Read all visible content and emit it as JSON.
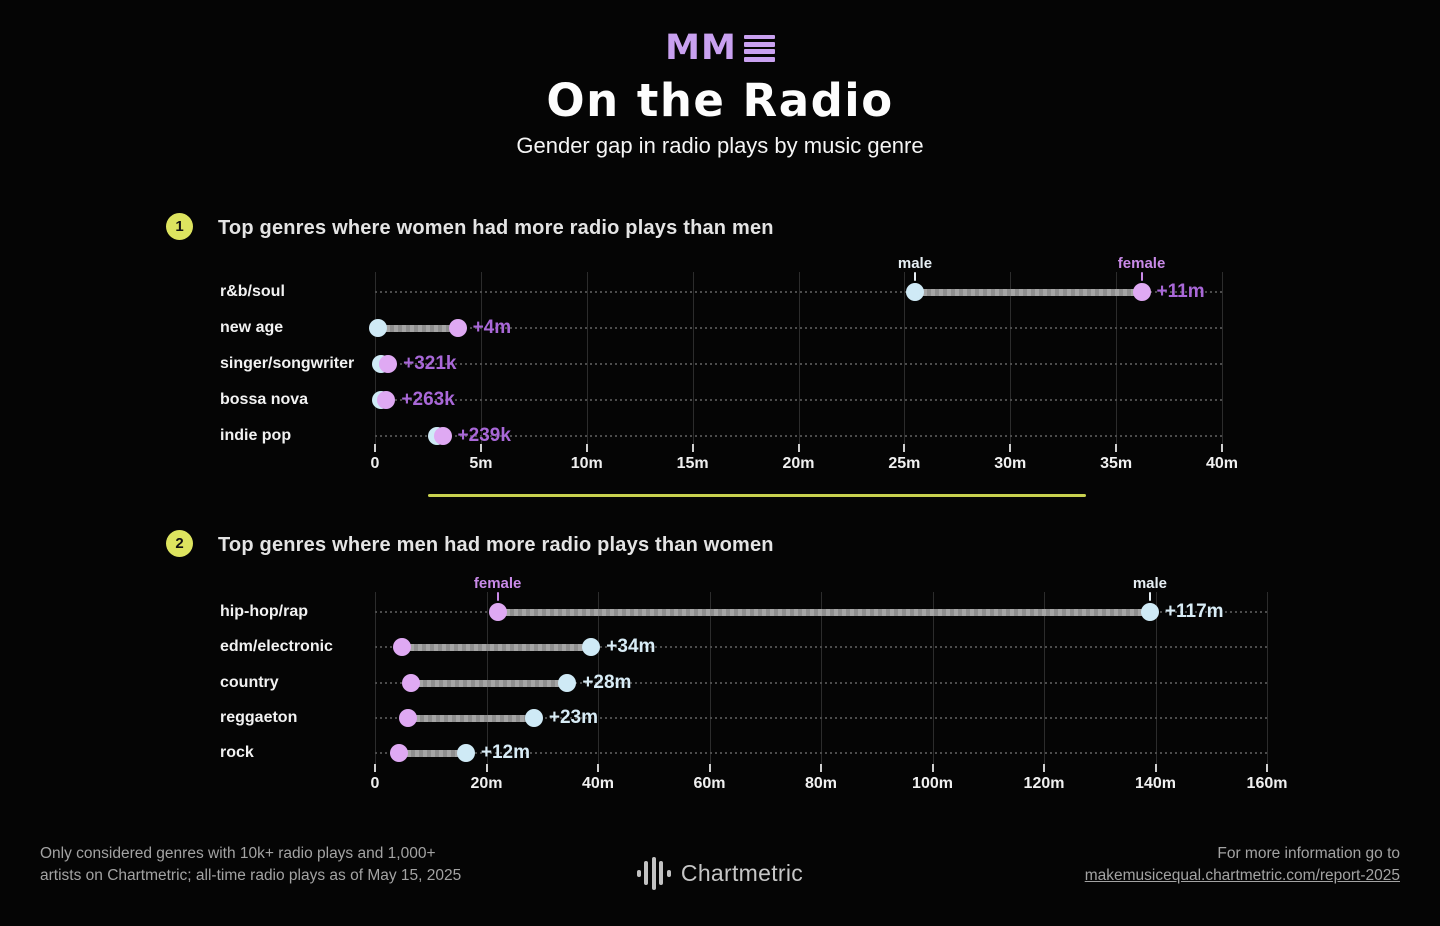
{
  "page": {
    "background": "#050505"
  },
  "header": {
    "logo": {
      "text": "MM",
      "icon": "menu-bars-icon",
      "color": "#c9a1f0"
    },
    "title": "On the Radio",
    "subtitle": "Gender gap in radio plays by music genre"
  },
  "colors": {
    "male_dot": "#cfeaf6",
    "female_dot": "#dfa9f3",
    "male_annotation": "#e6eef3",
    "female_annotation": "#c98ae8",
    "badge_bg": "#dde45f",
    "divider": "#c9d24f",
    "connector": "#9b9b9b",
    "grid": "#2c2c2c"
  },
  "chart_data": [
    {
      "type": "dumbbell",
      "badge": "1",
      "title": "Top genres where women had more radio plays than men",
      "xlabel": "all-time radio plays",
      "xlim": [
        0,
        40
      ],
      "tick_values": [
        0,
        5,
        10,
        15,
        20,
        25,
        30,
        35,
        40
      ],
      "tick_labels": [
        "0",
        "5m",
        "10m",
        "15m",
        "20m",
        "25m",
        "30m",
        "35m",
        "40m"
      ],
      "value_color": "#a968d8",
      "rows": [
        {
          "genre": "r&b/soul",
          "male_m": 25.5,
          "female_m": 36.2,
          "gap_label": "+11m"
        },
        {
          "genre": "new age",
          "male_m": 0.15,
          "female_m": 3.9,
          "gap_label": "+4m"
        },
        {
          "genre": "singer/songwriter",
          "male_m": 0.3,
          "female_m": 0.62,
          "gap_label": "+321k"
        },
        {
          "genre": "bossa nova",
          "male_m": 0.28,
          "female_m": 0.54,
          "gap_label": "+263k"
        },
        {
          "genre": "indie pop",
          "male_m": 2.95,
          "female_m": 3.19,
          "gap_label": "+239k"
        }
      ],
      "annotations": [
        {
          "label": "male",
          "at_m": 25.5,
          "gender": "male"
        },
        {
          "label": "female",
          "at_m": 36.2,
          "gender": "female"
        }
      ]
    },
    {
      "type": "dumbbell",
      "badge": "2",
      "title": "Top genres where men had more radio plays than women",
      "xlabel": "all-time radio plays",
      "xlim": [
        0,
        160
      ],
      "tick_values": [
        0,
        20,
        40,
        60,
        80,
        100,
        120,
        140,
        160
      ],
      "tick_labels": [
        "0",
        "20m",
        "40m",
        "60m",
        "80m",
        "100m",
        "120m",
        "140m",
        "160m"
      ],
      "value_color": "#d8ecf6",
      "rows": [
        {
          "genre": "hip-hop/rap",
          "male_m": 139,
          "female_m": 22,
          "gap_label": "+117m"
        },
        {
          "genre": "edm/electronic",
          "male_m": 38.8,
          "female_m": 4.8,
          "gap_label": "+34m"
        },
        {
          "genre": "country",
          "male_m": 34.5,
          "female_m": 6.5,
          "gap_label": "+28m"
        },
        {
          "genre": "reggaeton",
          "male_m": 28.5,
          "female_m": 6.0,
          "gap_label": "+23m"
        },
        {
          "genre": "rock",
          "male_m": 16.3,
          "female_m": 4.3,
          "gap_label": "+12m"
        }
      ],
      "annotations": [
        {
          "label": "female",
          "at_m": 22,
          "gender": "female"
        },
        {
          "label": "male",
          "at_m": 139,
          "gender": "male"
        }
      ]
    }
  ],
  "footer": {
    "note_line1": "Only considered genres with 10k+ radio plays and 1,000+",
    "note_line2": "artists on Chartmetric; all-time radio plays as of May 15, 2025",
    "brand": "Chartmetric",
    "info_line1": "For more information go to",
    "info_link": "makemusicequal.chartmetric.com/report-2025"
  }
}
